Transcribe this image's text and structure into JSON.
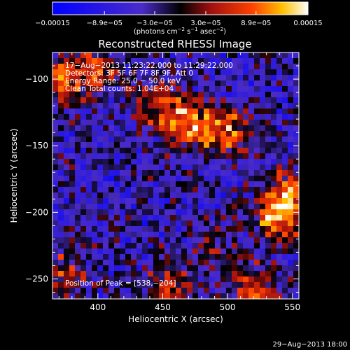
{
  "chart_data": {
    "type": "heatmap",
    "title": "Reconstructed RHESSI Image",
    "xlabel": "Heliocentric X (arcsec)",
    "ylabel": "Heliocentric Y (arcsec)",
    "xlim": [
      365,
      555
    ],
    "ylim": [
      -265,
      -80
    ],
    "x_ticks": [
      {
        "value": 400,
        "label": "400"
      },
      {
        "value": 450,
        "label": "450"
      },
      {
        "value": 500,
        "label": "500"
      },
      {
        "value": 550,
        "label": "550"
      }
    ],
    "y_ticks": [
      {
        "value": -100,
        "label": "−100"
      },
      {
        "value": -150,
        "label": "−150"
      },
      {
        "value": -200,
        "label": "−200"
      },
      {
        "value": -250,
        "label": "−250"
      }
    ],
    "colorbar": {
      "min": -0.00015,
      "max": 0.00015,
      "ticks": [
        {
          "value": -0.00015,
          "label": "−0.00015"
        },
        {
          "value": -8.9e-05,
          "label": "−8.9e−05"
        },
        {
          "value": -3e-05,
          "label": "−3.0e−05"
        },
        {
          "value": 3e-05,
          "label": "3.0e−05"
        },
        {
          "value": 8.9e-05,
          "label": "8.9e−05"
        },
        {
          "value": 0.00015,
          "label": "0.00015"
        }
      ],
      "unit_prefix": "(photons cm",
      "unit_exp1": "−2",
      "unit_mid1": " s",
      "unit_exp2": "−1",
      "unit_mid2": " asec",
      "unit_exp3": "−2",
      "unit_suffix": ")"
    },
    "annotations": {
      "time_range": "17−Aug−2013 11:23:22.000 to 11:29:22.000",
      "detectors": "Detectors: 3F 5F 6F 7F 8F 9F, Att 0",
      "energy": "Energy Range: 25.0 − 50.0 keV",
      "clean": "Clean     Total counts: 1.04E+04",
      "peak": "Position of Peak = [538,−204]"
    },
    "sources": [
      {
        "x": 470,
        "y": -135,
        "peak": 0.000135
      },
      {
        "x": 500,
        "y": -140,
        "peak": 0.00012
      },
      {
        "x": 445,
        "y": -118,
        "peak": 9.5e-05
      },
      {
        "x": 375,
        "y": -100,
        "peak": 0.00011
      },
      {
        "x": 400,
        "y": -92,
        "peak": 8e-05
      },
      {
        "x": 538,
        "y": -204,
        "peak": 0.00015
      },
      {
        "x": 548,
        "y": -185,
        "peak": 0.00011
      },
      {
        "x": 520,
        "y": -262,
        "peak": 0.00013
      },
      {
        "x": 375,
        "y": -245,
        "peak": 8.5e-05
      },
      {
        "x": 455,
        "y": -252,
        "peak": 8e-05
      },
      {
        "x": 490,
        "y": -228,
        "peak": 6e-05
      }
    ],
    "footer": "29−Aug−2013 18:00"
  }
}
